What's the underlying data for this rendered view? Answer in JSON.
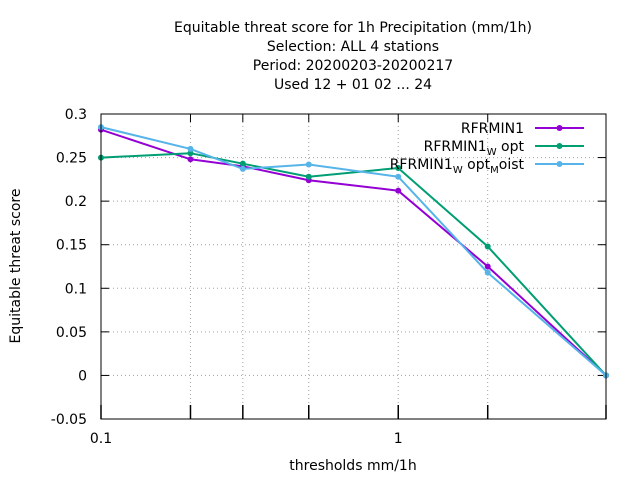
{
  "chart_data": {
    "type": "line",
    "title_lines": [
      "Equitable threat score  for 1h Precipitation (mm/1h)",
      "Selection: ALL      4 stations",
      "Period: 20200203-20200217",
      "Used  12 + 01 02 ... 24"
    ],
    "xlabel": "thresholds mm/1h",
    "ylabel": "Equitable threat score",
    "x_scale": "log",
    "xlim": [
      0.1,
      5
    ],
    "ylim": [
      -0.05,
      0.3
    ],
    "x_ticks": [
      0.1,
      0.2,
      0.3,
      0.5,
      1,
      2,
      5
    ],
    "x_tick_labels": [
      {
        "value": 0.1,
        "label": "0.1"
      },
      {
        "value": 1,
        "label": "1"
      }
    ],
    "y_ticks": [
      -0.05,
      0,
      0.05,
      0.1,
      0.15,
      0.2,
      0.25,
      0.3
    ],
    "y_tick_labels": [
      "-0.05",
      "0",
      "0.05",
      "0.1",
      "0.15",
      "0.2",
      "0.25",
      "0.3"
    ],
    "grid": true,
    "legend_position": "top-right",
    "x": [
      0.1,
      0.2,
      0.3,
      0.5,
      1,
      2,
      5
    ],
    "series": [
      {
        "name": "RFRMIN1",
        "legend_base": "RFRMIN1",
        "legend_subs": [],
        "color": "#9400d3",
        "values": [
          0.282,
          0.248,
          0.24,
          0.224,
          0.212,
          0.125,
          0.0
        ]
      },
      {
        "name": "RFRMIN1_W opt",
        "legend_base": "RFRMIN1",
        "legend_subs": [
          {
            "sub": "W",
            "after": " opt"
          }
        ],
        "color": "#009e73",
        "values": [
          0.25,
          0.255,
          0.243,
          0.228,
          0.238,
          0.148,
          0.0
        ]
      },
      {
        "name": "RFRMIN1_W opt_M oist",
        "legend_base": "RFRMIN1",
        "legend_subs": [
          {
            "sub": "W",
            "after": " opt"
          },
          {
            "sub": "M",
            "after": "oist"
          }
        ],
        "color": "#56b4e9",
        "values": [
          0.285,
          0.26,
          0.237,
          0.242,
          0.228,
          0.118,
          0.0
        ]
      }
    ]
  }
}
